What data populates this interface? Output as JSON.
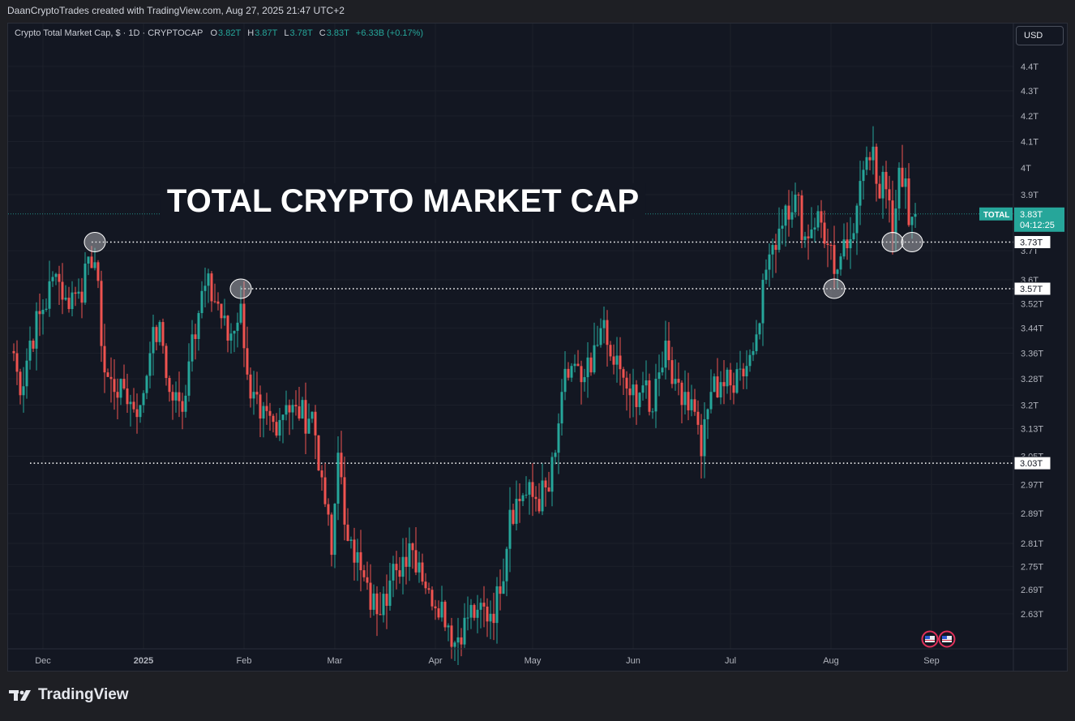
{
  "header": {
    "credit": "DaanCryptoTrades created with TradingView.com, Aug 27, 2025 21:47 UTC+2"
  },
  "legend": {
    "symbol": "Crypto Total Market Cap, $ · 1D · CRYPTOCAP",
    "open_label": "O",
    "open": "3.82T",
    "high_label": "H",
    "high": "3.87T",
    "low_label": "L",
    "low": "3.78T",
    "close_label": "C",
    "close": "3.83T",
    "change": "+6.33B (+0.17%)"
  },
  "currency_button": "USD",
  "footer": {
    "logo_text": "TradingView"
  },
  "colors": {
    "up": "#26a69a",
    "down": "#ef5350",
    "background": "#131722",
    "text": "#b2b5be"
  },
  "chart_data": {
    "type": "candlestick",
    "title": "TOTAL CRYPTO MARKET CAP",
    "y_scale": "log",
    "ylim": [
      2.58,
      4.45
    ],
    "y_ticks": [
      "4.4T",
      "4.3T",
      "4.2T",
      "4.1T",
      "4T",
      "3.9T",
      "3.7T",
      "3.6T",
      "3.52T",
      "3.44T",
      "3.36T",
      "3.28T",
      "3.2T",
      "3.13T",
      "3.05T",
      "2.97T",
      "2.89T",
      "2.81T",
      "2.75T",
      "2.69T",
      "2.63T"
    ],
    "x_ticks": [
      "Dec",
      "2025",
      "Feb",
      "Mar",
      "Apr",
      "May",
      "Jun",
      "Jul",
      "Aug",
      "Sep"
    ],
    "current_price": {
      "symbol": "TOTAL",
      "value": "3.83T",
      "countdown": "04:12:25"
    },
    "horizontal_levels": [
      {
        "value": 3.73,
        "label": "3.73T"
      },
      {
        "value": 3.57,
        "label": "3.57T"
      },
      {
        "value": 3.03,
        "label": "3.03T"
      }
    ],
    "anchors": [
      {
        "date": "2024-11-22",
        "close": 3.36
      },
      {
        "date": "2024-11-24",
        "close": 3.23
      },
      {
        "date": "2024-11-27",
        "close": 3.4
      },
      {
        "date": "2024-12-01",
        "close": 3.5
      },
      {
        "date": "2024-12-05",
        "close": 3.62
      },
      {
        "date": "2024-12-08",
        "close": 3.54
      },
      {
        "date": "2024-12-12",
        "close": 3.56
      },
      {
        "date": "2024-12-16",
        "close": 3.64
      },
      {
        "date": "2024-12-17",
        "close": 3.66
      },
      {
        "date": "2024-12-20",
        "close": 3.3
      },
      {
        "date": "2024-12-23",
        "close": 3.24
      },
      {
        "date": "2024-12-25",
        "close": 3.28
      },
      {
        "date": "2024-12-28",
        "close": 3.21
      },
      {
        "date": "2024-12-31",
        "close": 3.2
      },
      {
        "date": "2025-01-03",
        "close": 3.36
      },
      {
        "date": "2025-01-06",
        "close": 3.46
      },
      {
        "date": "2025-01-09",
        "close": 3.24
      },
      {
        "date": "2025-01-13",
        "close": 3.18
      },
      {
        "date": "2025-01-16",
        "close": 3.42
      },
      {
        "date": "2025-01-20",
        "close": 3.58
      },
      {
        "date": "2025-01-24",
        "close": 3.52
      },
      {
        "date": "2025-01-27",
        "close": 3.4
      },
      {
        "date": "2025-01-31",
        "close": 3.52
      },
      {
        "date": "2025-02-03",
        "close": 3.22
      },
      {
        "date": "2025-02-06",
        "close": 3.16
      },
      {
        "date": "2025-02-10",
        "close": 3.15
      },
      {
        "date": "2025-02-14",
        "close": 3.2
      },
      {
        "date": "2025-02-18",
        "close": 3.16
      },
      {
        "date": "2025-02-22",
        "close": 3.18
      },
      {
        "date": "2025-02-25",
        "close": 2.99
      },
      {
        "date": "2025-02-28",
        "close": 2.78
      },
      {
        "date": "2025-03-02",
        "close": 3.06
      },
      {
        "date": "2025-03-04",
        "close": 2.86
      },
      {
        "date": "2025-03-06",
        "close": 2.82
      },
      {
        "date": "2025-03-09",
        "close": 2.74
      },
      {
        "date": "2025-03-12",
        "close": 2.64
      },
      {
        "date": "2025-03-16",
        "close": 2.68
      },
      {
        "date": "2025-03-20",
        "close": 2.74
      },
      {
        "date": "2025-03-24",
        "close": 2.81
      },
      {
        "date": "2025-03-27",
        "close": 2.76
      },
      {
        "date": "2025-03-30",
        "close": 2.69
      },
      {
        "date": "2025-04-03",
        "close": 2.66
      },
      {
        "date": "2025-04-07",
        "close": 2.56
      },
      {
        "date": "2025-04-10",
        "close": 2.62
      },
      {
        "date": "2025-04-14",
        "close": 2.64
      },
      {
        "date": "2025-04-18",
        "close": 2.63
      },
      {
        "date": "2025-04-21",
        "close": 2.68
      },
      {
        "date": "2025-04-24",
        "close": 2.9
      },
      {
        "date": "2025-04-28",
        "close": 2.94
      },
      {
        "date": "2025-05-02",
        "close": 2.93
      },
      {
        "date": "2025-05-06",
        "close": 2.95
      },
      {
        "date": "2025-05-08",
        "close": 3.06
      },
      {
        "date": "2025-05-10",
        "close": 3.24
      },
      {
        "date": "2025-05-13",
        "close": 3.32
      },
      {
        "date": "2025-05-16",
        "close": 3.27
      },
      {
        "date": "2025-05-19",
        "close": 3.3
      },
      {
        "date": "2025-05-22",
        "close": 3.44
      },
      {
        "date": "2025-05-25",
        "close": 3.35
      },
      {
        "date": "2025-05-28",
        "close": 3.31
      },
      {
        "date": "2025-05-31",
        "close": 3.23
      },
      {
        "date": "2025-06-04",
        "close": 3.26
      },
      {
        "date": "2025-06-06",
        "close": 3.18
      },
      {
        "date": "2025-06-09",
        "close": 3.3
      },
      {
        "date": "2025-06-11",
        "close": 3.4
      },
      {
        "date": "2025-06-14",
        "close": 3.28
      },
      {
        "date": "2025-06-17",
        "close": 3.24
      },
      {
        "date": "2025-06-20",
        "close": 3.18
      },
      {
        "date": "2025-06-22",
        "close": 3.05
      },
      {
        "date": "2025-06-25",
        "close": 3.24
      },
      {
        "date": "2025-06-28",
        "close": 3.27
      },
      {
        "date": "2025-07-01",
        "close": 3.26
      },
      {
        "date": "2025-07-03",
        "close": 3.31
      },
      {
        "date": "2025-07-06",
        "close": 3.32
      },
      {
        "date": "2025-07-09",
        "close": 3.42
      },
      {
        "date": "2025-07-11",
        "close": 3.6
      },
      {
        "date": "2025-07-14",
        "close": 3.72
      },
      {
        "date": "2025-07-18",
        "close": 3.86
      },
      {
        "date": "2025-07-21",
        "close": 3.9
      },
      {
        "date": "2025-07-24",
        "close": 3.75
      },
      {
        "date": "2025-07-28",
        "close": 3.84
      },
      {
        "date": "2025-07-31",
        "close": 3.72
      },
      {
        "date": "2025-08-02",
        "close": 3.62
      },
      {
        "date": "2025-08-04",
        "close": 3.68
      },
      {
        "date": "2025-08-07",
        "close": 3.74
      },
      {
        "date": "2025-08-09",
        "close": 3.86
      },
      {
        "date": "2025-08-12",
        "close": 4.04
      },
      {
        "date": "2025-08-14",
        "close": 4.08
      },
      {
        "date": "2025-08-15",
        "close": 3.94
      },
      {
        "date": "2025-08-18",
        "close": 3.92
      },
      {
        "date": "2025-08-20",
        "close": 3.76
      },
      {
        "date": "2025-08-22",
        "close": 4.0
      },
      {
        "date": "2025-08-24",
        "close": 3.96
      },
      {
        "date": "2025-08-25",
        "close": 3.79
      },
      {
        "date": "2025-08-26",
        "close": 3.82
      },
      {
        "date": "2025-08-27",
        "close": 3.83
      }
    ],
    "last_candle": {
      "date": "2025-08-27",
      "open": 3.82,
      "high": 3.87,
      "low": 3.78,
      "close": 3.83
    },
    "circled_points": [
      {
        "date": "2024-12-17",
        "value": 3.73
      },
      {
        "date": "2025-01-31",
        "value": 3.57
      },
      {
        "date": "2025-08-02",
        "value": 3.57
      },
      {
        "date": "2025-08-20",
        "value": 3.73
      },
      {
        "date": "2025-08-26",
        "value": 3.73
      }
    ]
  }
}
